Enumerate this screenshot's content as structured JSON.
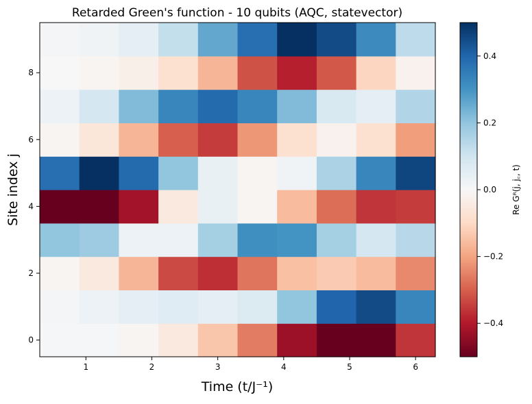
{
  "chart_data": {
    "type": "heatmap",
    "title": "Retarded Green's function - 10 qubits (AQC, statevector)",
    "xlabel": "Time  (t/J⁻¹)",
    "ylabel": "Site index j",
    "colorbar_label": "Re Gᴿ(j, j꜀, t)",
    "colormap": "RdBu",
    "vmin": -0.5,
    "vmax": 0.5,
    "x": [
      0.6,
      1.2,
      1.8,
      2.4,
      3.0,
      3.6,
      4.2,
      4.8,
      5.4,
      6.0
    ],
    "y": [
      0,
      1,
      2,
      3,
      4,
      5,
      6,
      7,
      8,
      9
    ],
    "xlim": [
      0.3,
      6.3
    ],
    "ylim": [
      -0.5,
      9.5
    ],
    "x_ticks": [
      "1",
      "2",
      "3",
      "4",
      "5",
      "6"
    ],
    "y_ticks": [
      "0",
      "2",
      "4",
      "6",
      "8"
    ],
    "colorbar_ticks": [
      "0.4",
      "0.2",
      "0.0",
      "−0.2",
      "−0.4"
    ],
    "values": [
      [
        0.005,
        0.005,
        -0.01,
        -0.05,
        -0.14,
        -0.26,
        -0.43,
        -0.5,
        -0.5,
        -0.36
      ],
      [
        0.01,
        0.03,
        0.05,
        0.06,
        0.05,
        0.07,
        0.2,
        0.4,
        0.45,
        0.33
      ],
      [
        -0.01,
        -0.05,
        -0.17,
        -0.33,
        -0.37,
        -0.27,
        -0.15,
        -0.13,
        -0.16,
        -0.24
      ],
      [
        0.2,
        0.18,
        0.03,
        0.03,
        0.17,
        0.31,
        0.3,
        0.17,
        0.09,
        0.14
      ],
      [
        -0.5,
        -0.5,
        -0.42,
        -0.05,
        0.04,
        -0.01,
        -0.16,
        -0.28,
        -0.36,
        -0.35
      ],
      [
        0.38,
        0.5,
        0.39,
        0.2,
        0.04,
        -0.01,
        0.02,
        0.16,
        0.33,
        0.46
      ],
      [
        -0.01,
        -0.06,
        -0.17,
        -0.3,
        -0.35,
        -0.22,
        -0.08,
        -0.02,
        -0.08,
        -0.21
      ],
      [
        0.03,
        0.09,
        0.22,
        0.33,
        0.39,
        0.33,
        0.22,
        0.08,
        0.05,
        0.15
      ],
      [
        0.0,
        -0.01,
        -0.03,
        -0.08,
        -0.17,
        -0.32,
        -0.39,
        -0.31,
        -0.11,
        -0.02
      ],
      [
        0.01,
        0.02,
        0.05,
        0.12,
        0.26,
        0.38,
        0.5,
        0.45,
        0.32,
        0.13
      ]
    ]
  }
}
